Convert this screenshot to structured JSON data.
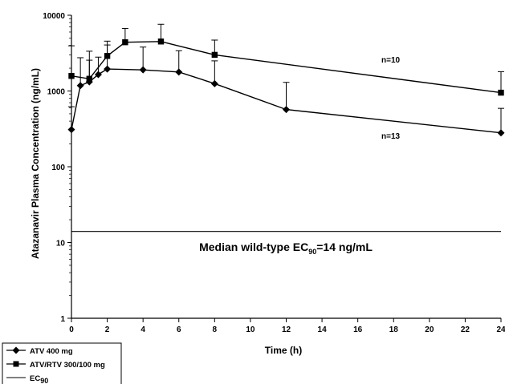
{
  "chart_data": {
    "type": "line",
    "title": "",
    "xlabel": "Time (h)",
    "ylabel": "Atazanavir Plasma Concentration (ng/mL)",
    "y_scale": "log",
    "xlim": [
      0,
      24
    ],
    "ylim": [
      1,
      10000
    ],
    "x_ticks": [
      0,
      2,
      4,
      6,
      8,
      10,
      12,
      14,
      16,
      18,
      20,
      22,
      24
    ],
    "y_ticks": [
      1,
      10,
      100,
      1000,
      10000
    ],
    "grid": false,
    "legend_position": "bottom-left",
    "series": [
      {
        "name": "ATV 400 mg",
        "marker": "diamond",
        "color": "#000000",
        "x": [
          0,
          0.5,
          1,
          1.5,
          2,
          4,
          6,
          8,
          12,
          24
        ],
        "y": [
          310,
          1180,
          1320,
          1650,
          1950,
          1900,
          1780,
          1250,
          570,
          280
        ],
        "error_upper": [
          620,
          2750,
          2550,
          2800,
          4050,
          3800,
          3400,
          2500,
          1300,
          590
        ]
      },
      {
        "name": "ATV/RTV 300/100 mg",
        "marker": "square",
        "color": "#000000",
        "x": [
          0,
          1,
          2,
          3,
          5,
          8,
          24
        ],
        "y": [
          1580,
          1450,
          2900,
          4400,
          4500,
          3000,
          950
        ],
        "error_upper": [
          3950,
          3350,
          4550,
          6700,
          7600,
          4700,
          1800
        ]
      },
      {
        "name": "EC90",
        "type": "reference_line",
        "y": 14
      }
    ],
    "annotations": {
      "n_upper": "n=10",
      "n_lower": "n=13",
      "ec90_label_pre": "Median wild-type EC",
      "ec90_label_sub": "90",
      "ec90_label_post": "=14 ng/mL"
    },
    "legend": {
      "items": [
        "ATV 400 mg",
        "ATV/RTV 300/100 mg"
      ],
      "ec_label": "EC",
      "ec_sub": "90"
    }
  }
}
